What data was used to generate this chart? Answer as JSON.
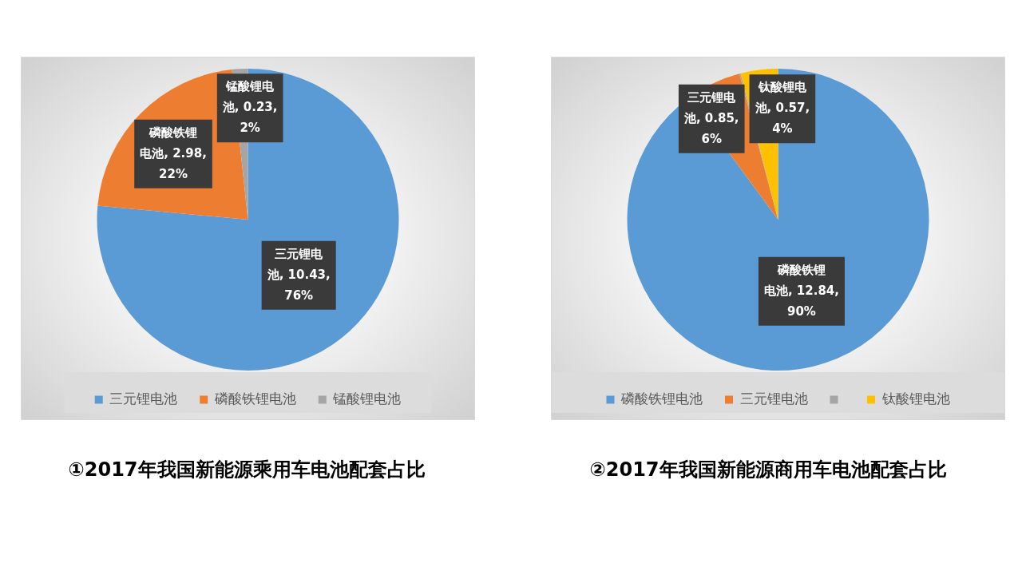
{
  "chart_data": [
    {
      "type": "pie",
      "title": "①2017年我国新能源乘用车电池配套占比",
      "categories": [
        "三元锂电池",
        "磷酸铁锂电池",
        "锰酸锂电池"
      ],
      "values": [
        10.43,
        2.98,
        0.23
      ],
      "colors": [
        "#5b9bd5",
        "#ed7d31",
        "#a5a5a5"
      ],
      "value_labels": [
        "三元锂电池, 10.43, 76%",
        "磷酸铁锂电池, 2.98, 22%",
        "锰酸锂电池, 0.23, 2%"
      ],
      "legend": "bottom"
    },
    {
      "type": "pie",
      "title": "②2017年我国新能源商用车电池配套占比",
      "categories": [
        "磷酸铁锂电池",
        "三元锂电池",
        null,
        "钛酸锂电池"
      ],
      "values": [
        12.84,
        0.85,
        0.02,
        0.57
      ],
      "colors": [
        "#5b9bd5",
        "#ed7d31",
        "#a5a5a5",
        "#ffc000"
      ],
      "value_labels": [
        "磷酸铁锂电池, 12.84, 90%",
        "三元锂电池, 0.85, 6%",
        null,
        "钛酸锂电池, 0.57, 4%"
      ],
      "legend": "bottom"
    }
  ]
}
